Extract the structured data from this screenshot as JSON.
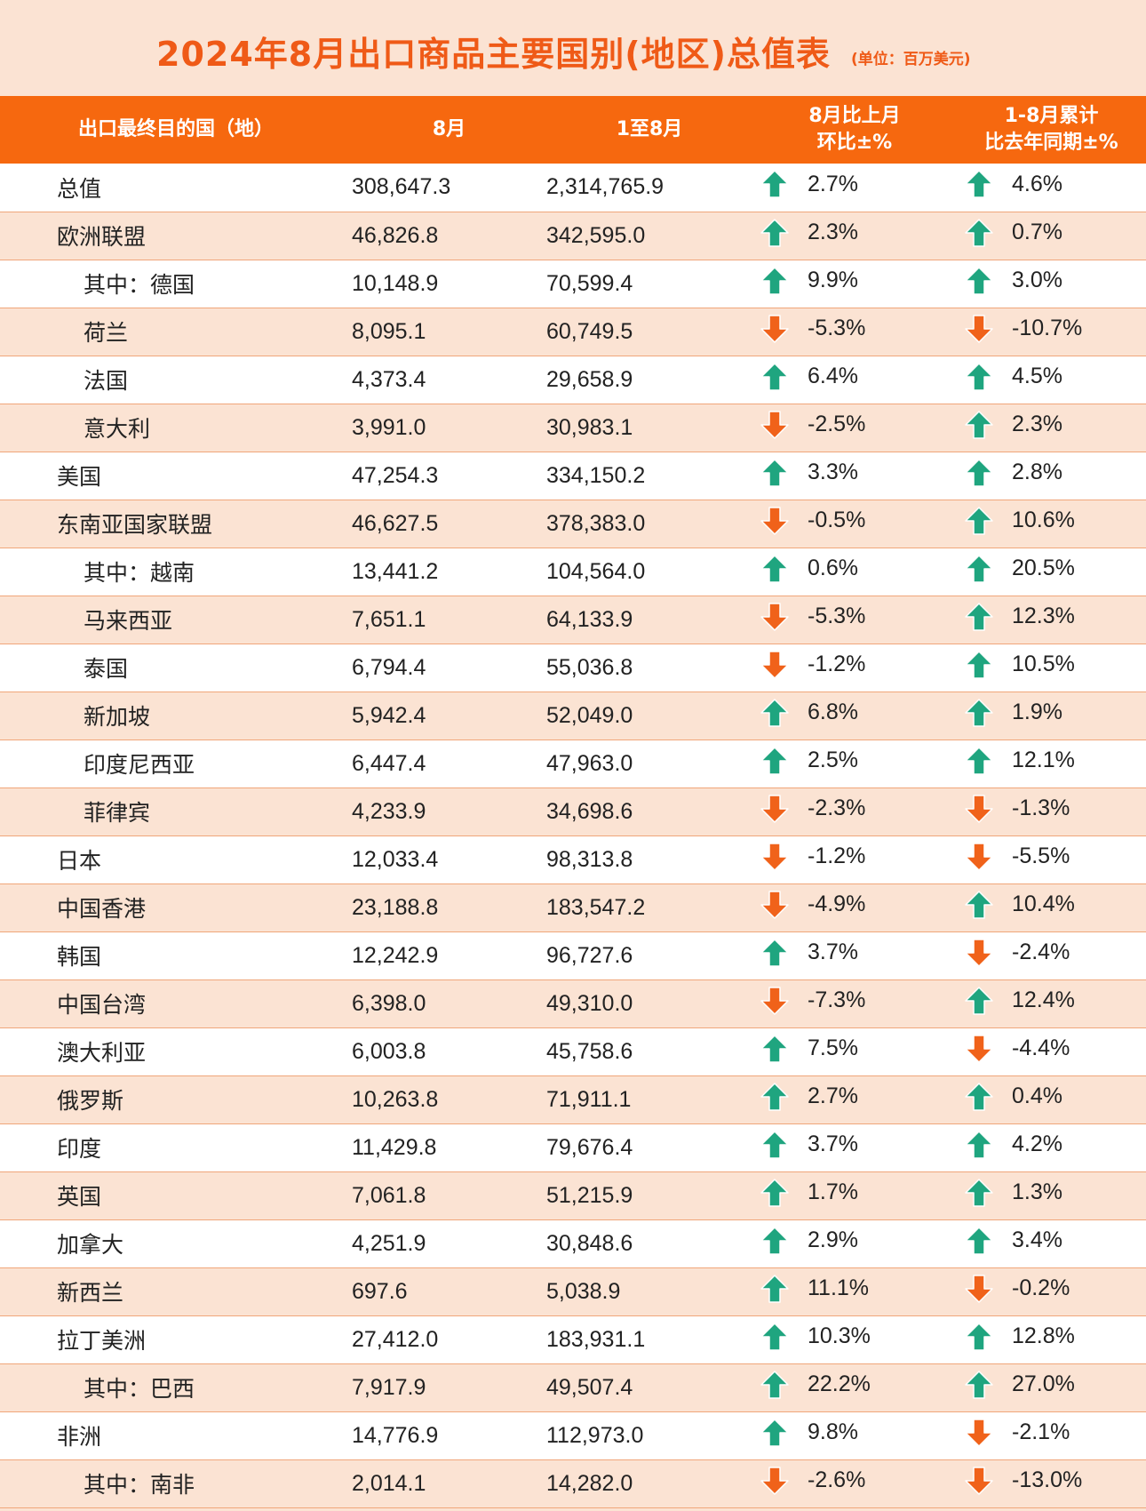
{
  "title": "2024年8月出口商品主要国别(地区)总值表",
  "unit": "(单位：百万美元)",
  "colors": {
    "accent": "#ef5a17",
    "header_bg": "#f6680f",
    "up": "#1fa57f",
    "down": "#f0621a"
  },
  "headers": {
    "country": "出口最终目的国（地）",
    "aug": "8月",
    "ytd": "1至8月",
    "mom_line1": "8月比上月",
    "mom_line2": "环比±%",
    "yoy_line1": "1-8月累计",
    "yoy_line2": "比去年同期±%"
  },
  "rows": [
    {
      "name": "总值",
      "indent": false,
      "aug": "308,647.3",
      "ytd": "2,314,765.9",
      "mom": "2.7%",
      "mom_dir": "up",
      "yoy": "4.6%",
      "yoy_dir": "up"
    },
    {
      "name": "欧洲联盟",
      "indent": false,
      "aug": "46,826.8",
      "ytd": "342,595.0",
      "mom": "2.3%",
      "mom_dir": "up",
      "yoy": "0.7%",
      "yoy_dir": "up"
    },
    {
      "name": "其中：德国",
      "indent": true,
      "aug": "10,148.9",
      "ytd": "70,599.4",
      "mom": "9.9%",
      "mom_dir": "up",
      "yoy": "3.0%",
      "yoy_dir": "up"
    },
    {
      "name": "荷兰",
      "indent": true,
      "aug": "8,095.1",
      "ytd": "60,749.5",
      "mom": "-5.3%",
      "mom_dir": "down",
      "yoy": "-10.7%",
      "yoy_dir": "down"
    },
    {
      "name": "法国",
      "indent": true,
      "aug": "4,373.4",
      "ytd": "29,658.9",
      "mom": "6.4%",
      "mom_dir": "up",
      "yoy": "4.5%",
      "yoy_dir": "up"
    },
    {
      "name": "意大利",
      "indent": true,
      "aug": "3,991.0",
      "ytd": "30,983.1",
      "mom": "-2.5%",
      "mom_dir": "down",
      "yoy": "2.3%",
      "yoy_dir": "up"
    },
    {
      "name": "美国",
      "indent": false,
      "aug": "47,254.3",
      "ytd": "334,150.2",
      "mom": "3.3%",
      "mom_dir": "up",
      "yoy": "2.8%",
      "yoy_dir": "up"
    },
    {
      "name": "东南亚国家联盟",
      "indent": false,
      "aug": "46,627.5",
      "ytd": "378,383.0",
      "mom": "-0.5%",
      "mom_dir": "down",
      "yoy": "10.6%",
      "yoy_dir": "up"
    },
    {
      "name": "其中：越南",
      "indent": true,
      "aug": "13,441.2",
      "ytd": "104,564.0",
      "mom": "0.6%",
      "mom_dir": "up",
      "yoy": "20.5%",
      "yoy_dir": "up"
    },
    {
      "name": "马来西亚",
      "indent": true,
      "aug": "7,651.1",
      "ytd": "64,133.9",
      "mom": "-5.3%",
      "mom_dir": "down",
      "yoy": "12.3%",
      "yoy_dir": "up"
    },
    {
      "name": "泰国",
      "indent": true,
      "aug": "6,794.4",
      "ytd": "55,036.8",
      "mom": "-1.2%",
      "mom_dir": "down",
      "yoy": "10.5%",
      "yoy_dir": "up"
    },
    {
      "name": "新加坡",
      "indent": true,
      "aug": "5,942.4",
      "ytd": "52,049.0",
      "mom": "6.8%",
      "mom_dir": "up",
      "yoy": "1.9%",
      "yoy_dir": "up"
    },
    {
      "name": "印度尼西亚",
      "indent": true,
      "aug": "6,447.4",
      "ytd": "47,963.0",
      "mom": "2.5%",
      "mom_dir": "up",
      "yoy": "12.1%",
      "yoy_dir": "up"
    },
    {
      "name": "菲律宾",
      "indent": true,
      "aug": "4,233.9",
      "ytd": "34,698.6",
      "mom": "-2.3%",
      "mom_dir": "down",
      "yoy": "-1.3%",
      "yoy_dir": "down"
    },
    {
      "name": "日本",
      "indent": false,
      "aug": "12,033.4",
      "ytd": "98,313.8",
      "mom": "-1.2%",
      "mom_dir": "down",
      "yoy": "-5.5%",
      "yoy_dir": "down"
    },
    {
      "name": "中国香港",
      "indent": false,
      "aug": "23,188.8",
      "ytd": "183,547.2",
      "mom": "-4.9%",
      "mom_dir": "down",
      "yoy": "10.4%",
      "yoy_dir": "up"
    },
    {
      "name": "韩国",
      "indent": false,
      "aug": "12,242.9",
      "ytd": "96,727.6",
      "mom": "3.7%",
      "mom_dir": "up",
      "yoy": "-2.4%",
      "yoy_dir": "down"
    },
    {
      "name": "中国台湾",
      "indent": false,
      "aug": "6,398.0",
      "ytd": "49,310.0",
      "mom": "-7.3%",
      "mom_dir": "down",
      "yoy": "12.4%",
      "yoy_dir": "up"
    },
    {
      "name": "澳大利亚",
      "indent": false,
      "aug": "6,003.8",
      "ytd": "45,758.6",
      "mom": "7.5%",
      "mom_dir": "up",
      "yoy": "-4.4%",
      "yoy_dir": "down"
    },
    {
      "name": "俄罗斯",
      "indent": false,
      "aug": "10,263.8",
      "ytd": "71,911.1",
      "mom": "2.7%",
      "mom_dir": "up",
      "yoy": "0.4%",
      "yoy_dir": "up"
    },
    {
      "name": "印度",
      "indent": false,
      "aug": "11,429.8",
      "ytd": "79,676.4",
      "mom": "3.7%",
      "mom_dir": "up",
      "yoy": "4.2%",
      "yoy_dir": "up"
    },
    {
      "name": "英国",
      "indent": false,
      "aug": "7,061.8",
      "ytd": "51,215.9",
      "mom": "1.7%",
      "mom_dir": "up",
      "yoy": "1.3%",
      "yoy_dir": "up"
    },
    {
      "name": "加拿大",
      "indent": false,
      "aug": "4,251.9",
      "ytd": "30,848.6",
      "mom": "2.9%",
      "mom_dir": "up",
      "yoy": "3.4%",
      "yoy_dir": "up"
    },
    {
      "name": "新西兰",
      "indent": false,
      "aug": "697.6",
      "ytd": "5,038.9",
      "mom": "11.1%",
      "mom_dir": "up",
      "yoy": "-0.2%",
      "yoy_dir": "down"
    },
    {
      "name": "拉丁美洲",
      "indent": false,
      "aug": "27,412.0",
      "ytd": "183,931.1",
      "mom": "10.3%",
      "mom_dir": "up",
      "yoy": "12.8%",
      "yoy_dir": "up"
    },
    {
      "name": "其中：巴西",
      "indent": true,
      "aug": "7,917.9",
      "ytd": "49,507.4",
      "mom": "22.2%",
      "mom_dir": "up",
      "yoy": "27.0%",
      "yoy_dir": "up"
    },
    {
      "name": "非洲",
      "indent": false,
      "aug": "14,776.9",
      "ytd": "112,973.0",
      "mom": "9.8%",
      "mom_dir": "up",
      "yoy": "-2.1%",
      "yoy_dir": "down"
    },
    {
      "name": "其中：南非",
      "indent": true,
      "aug": "2,014.1",
      "ytd": "14,282.0",
      "mom": "-2.6%",
      "mom_dir": "down",
      "yoy": "-13.0%",
      "yoy_dir": "down"
    }
  ]
}
